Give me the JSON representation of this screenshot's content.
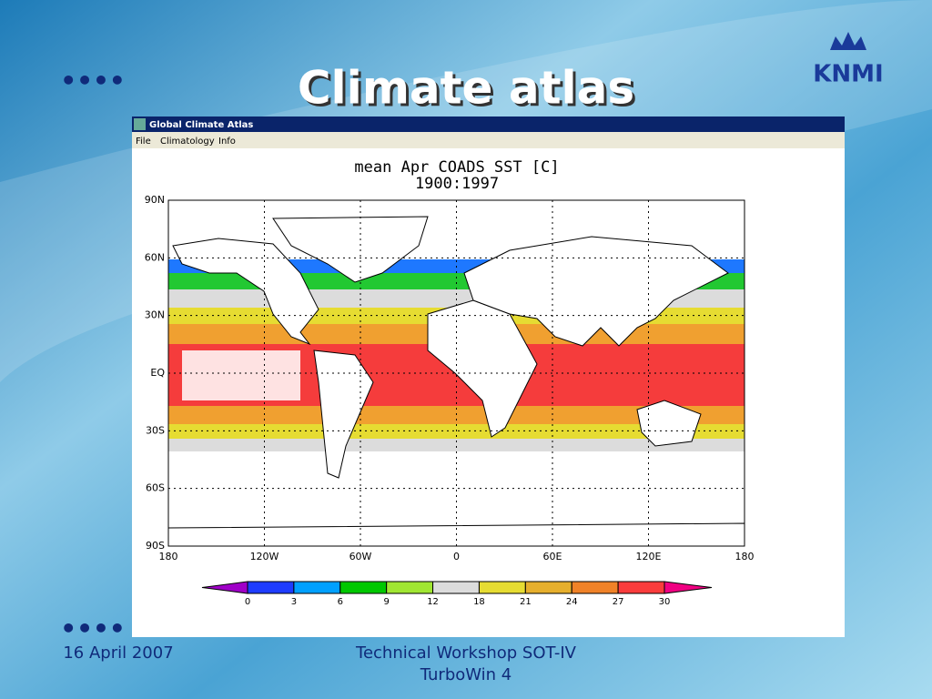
{
  "slide": {
    "title": "Climate atlas",
    "logo": "KNMI",
    "footer_left": "16 April 2007",
    "footer_center": [
      "Technical Workshop SOT-IV",
      "TurboWin 4"
    ]
  },
  "window": {
    "title": "Global Climate Atlas",
    "menu": [
      "File",
      "Climatology",
      "Info"
    ]
  },
  "map": {
    "title": "mean Apr COADS SST [C]",
    "subtitle": "1900:1997",
    "lat_labels": [
      "90N",
      "60N",
      "30N",
      "EQ",
      "30S",
      "60S",
      "90S"
    ],
    "lon_labels": [
      "180",
      "120W",
      "60W",
      "0",
      "60E",
      "120E",
      "180"
    ],
    "colorbar": {
      "labels": [
        "0",
        "3",
        "6",
        "9",
        "12",
        "18",
        "21",
        "24",
        "27",
        "30"
      ],
      "colors": [
        "#a000c8",
        "#1e3cff",
        "#00a0ff",
        "#00c800",
        "#a0e632",
        "#dcdcdc",
        "#e6dc32",
        "#e6af2d",
        "#f08228",
        "#fa3c3c",
        "#f00082"
      ]
    }
  }
}
